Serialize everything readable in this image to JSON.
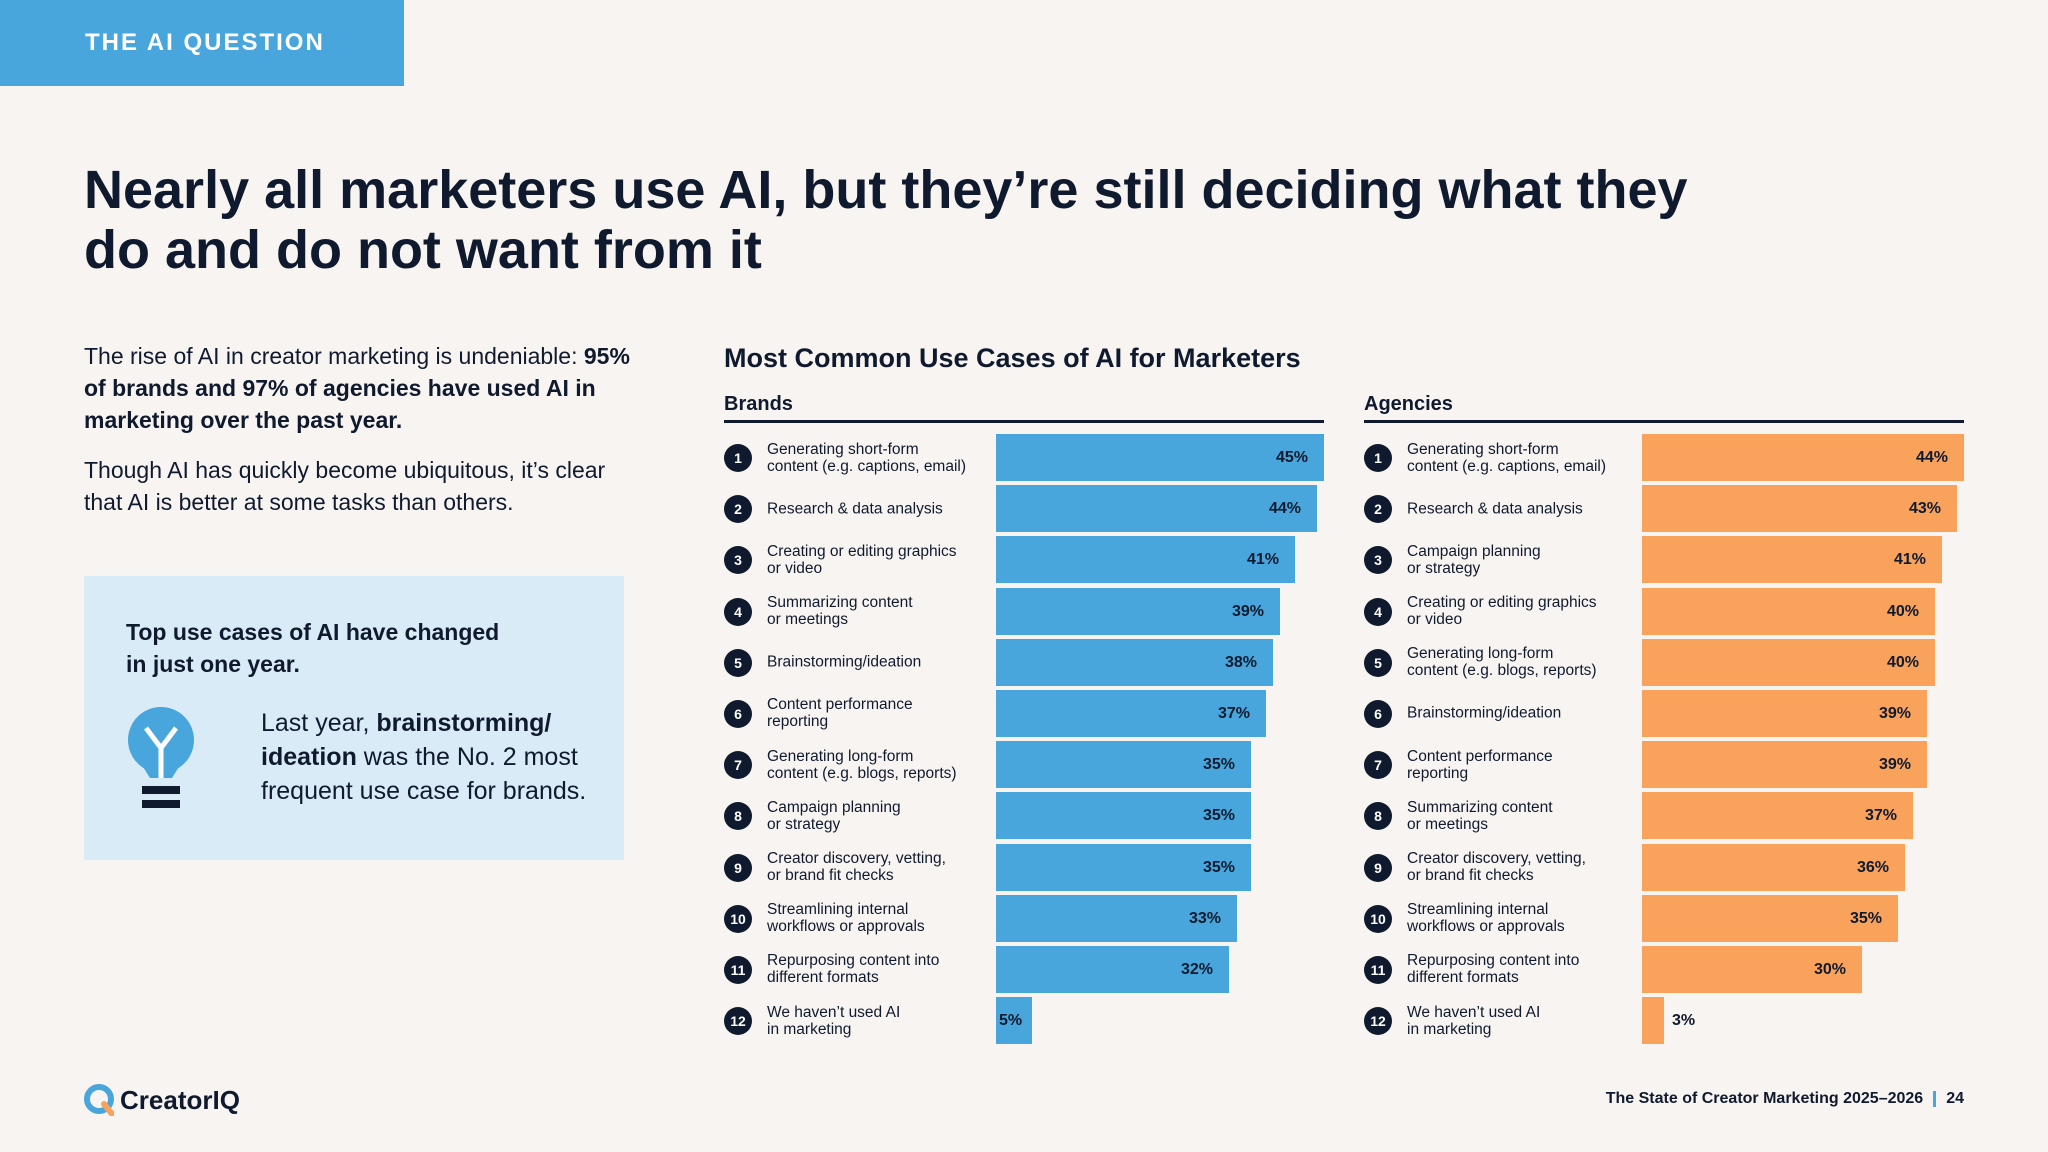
{
  "tag": "THE AI QUESTION",
  "headline": "Nearly all marketers use AI, but they’re still deciding what they do and do not want from it",
  "intro": {
    "p1_plain": "The rise of AI in creator marketing is undeniable: ",
    "p1_bold": "95% of brands and 97% of agencies have used AI in marketing over the past year.",
    "p2": "Though AI has quickly become ubiquitous, it’s clear that AI is better at some tasks than others."
  },
  "callout": {
    "title": "Top use cases of AI have changed in just one year.",
    "text_a": "Last year, ",
    "text_b": "brainstorming/ ideation",
    "text_c": " was the No. 2 most frequent use case for brands.",
    "icon": "lightbulb-icon"
  },
  "chart_data": [
    {
      "type": "bar",
      "orientation": "horizontal",
      "title": "Most Common Use Cases of AI for Marketers",
      "subtitle": "Brands",
      "value_unit": "%",
      "xlim": [
        0,
        45
      ],
      "color": "#48a6dc",
      "ranks": [
        "1",
        "2",
        "3",
        "4",
        "5",
        "6",
        "7",
        "8",
        "9",
        "10",
        "11",
        "12"
      ],
      "categories": [
        "Generating short-form\ncontent (e.g. captions, email)",
        "Research & data analysis",
        "Creating or editing graphics\nor video",
        "Summarizing content\nor meetings",
        "Brainstorming/ideation",
        "Content performance\nreporting",
        "Generating long-form\ncontent (e.g. blogs, reports)",
        "Campaign planning\nor strategy",
        "Creator discovery, vetting,\nor brand fit checks",
        "Streamlining internal\nworkflows or approvals",
        "Repurposing content into\ndifferent formats",
        "We haven’t used AI\nin marketing"
      ],
      "values": [
        45,
        44,
        41,
        39,
        38,
        37,
        35,
        35,
        35,
        33,
        32,
        5
      ]
    },
    {
      "type": "bar",
      "orientation": "horizontal",
      "subtitle": "Agencies",
      "value_unit": "%",
      "xlim": [
        0,
        44
      ],
      "color": "#f9a25c",
      "ranks": [
        "1",
        "2",
        "3",
        "4",
        "5",
        "6",
        "7",
        "8",
        "9",
        "10",
        "11",
        "12"
      ],
      "categories": [
        "Generating short-form\ncontent (e.g. captions, email)",
        "Research & data analysis",
        "Campaign planning\nor strategy",
        "Creating or editing graphics\nor video",
        "Generating long-form\ncontent (e.g. blogs, reports)",
        "Brainstorming/ideation",
        "Content performance\nreporting",
        "Summarizing content\nor meetings",
        "Creator discovery, vetting,\nor brand fit checks",
        "Streamlining internal\nworkflows or approvals",
        "Repurposing content into\ndifferent formats",
        "We haven’t used AI\nin marketing"
      ],
      "values": [
        44,
        43,
        41,
        40,
        40,
        39,
        39,
        37,
        36,
        35,
        30,
        3
      ]
    }
  ],
  "footer": {
    "logo": "CreatorIQ",
    "report": "The State of Creator Marketing 2025–2026",
    "page": "24"
  },
  "colors": {
    "accent_blue": "#48a6dc",
    "accent_orange": "#f9a25c",
    "navy": "#0f1a2e",
    "callout_bg": "#d9ebf6"
  }
}
